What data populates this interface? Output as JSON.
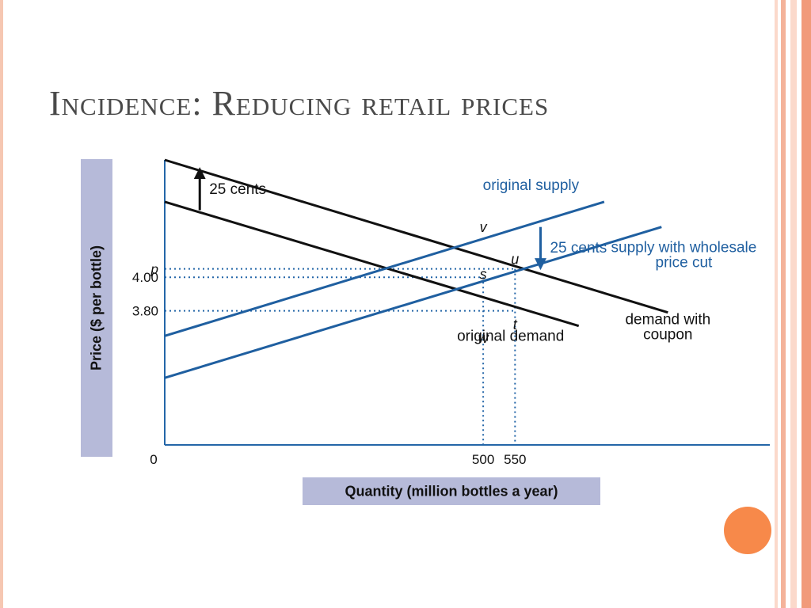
{
  "slide": {
    "title": "Incidence: Reducing retail prices",
    "colors": {
      "left_border": "#f6c7b2",
      "stripes": [
        "#fbd9cb",
        "#f4b39a",
        "#fbd9cb",
        "#f19a7a"
      ],
      "accent_circle": "#f7894a",
      "axis_label_box": "#b6bad9"
    }
  },
  "chart_data": {
    "type": "line",
    "xlabel": "Quantity (million bottles a year)",
    "ylabel": "Price ($ per bottle)",
    "x_ticks": [
      {
        "value": 0,
        "label": "0"
      },
      {
        "value": 500,
        "label": "500"
      },
      {
        "value": 550,
        "label": "550"
      }
    ],
    "y_ticks": [
      {
        "value": 4.05,
        "label": "p"
      },
      {
        "value": 4.0,
        "label": "4.00"
      },
      {
        "value": 3.8,
        "label": "3.80"
      }
    ],
    "xlim": [
      0,
      950
    ],
    "ylim": [
      3.0,
      4.7
    ],
    "colors": {
      "demand": "#111111",
      "supply": "#1f5fa0",
      "guide": "#2466a8"
    },
    "series": [
      {
        "name": "demand with coupon",
        "kind": "demand",
        "x": [
          0,
          790
        ],
        "y": [
          4.7,
          3.79
        ]
      },
      {
        "name": "original demand",
        "kind": "demand",
        "x": [
          0,
          650
        ],
        "y": [
          4.45,
          3.71
        ]
      },
      {
        "name": "original supply",
        "kind": "supply",
        "x": [
          0,
          690
        ],
        "y": [
          3.65,
          4.45
        ]
      },
      {
        "name": "supply with wholesale price cut",
        "kind": "supply",
        "x": [
          0,
          780
        ],
        "y": [
          3.4,
          4.3
        ]
      }
    ],
    "guides": [
      {
        "x": 500,
        "y": 4.0
      },
      {
        "x": 550,
        "y": 3.8
      },
      {
        "x": 550,
        "y": 4.05
      }
    ],
    "shift_arrows": [
      {
        "label": "25 cents",
        "kind": "demand",
        "x": 55,
        "from": 4.4,
        "to": 4.65
      },
      {
        "label": "25 cents",
        "kind": "supply",
        "x": 590,
        "from": 4.3,
        "to": 4.05
      }
    ],
    "point_labels": [
      {
        "label": "v",
        "x": 500,
        "y": 4.27
      },
      {
        "label": "u",
        "x": 550,
        "y": 4.08
      },
      {
        "label": "s",
        "x": 500,
        "y": 3.99
      },
      {
        "label": "t",
        "x": 550,
        "y": 3.69
      },
      {
        "label": "w",
        "x": 500,
        "y": 3.61
      }
    ],
    "curve_labels": [
      {
        "text": "original supply",
        "x": 575,
        "y": 4.52,
        "color": "supply",
        "align": "middle"
      },
      {
        "text": "supply with wholesale",
        "x": 815,
        "y": 4.15,
        "color": "supply",
        "align": "middle"
      },
      {
        "text": "price cut",
        "x": 815,
        "y": 4.06,
        "color": "supply",
        "align": "middle"
      },
      {
        "text": "demand with",
        "x": 790,
        "y": 3.72,
        "color": "demand",
        "align": "middle"
      },
      {
        "text": "coupon",
        "x": 790,
        "y": 3.63,
        "color": "demand",
        "align": "middle"
      },
      {
        "text": "original demand",
        "x": 543,
        "y": 3.62,
        "color": "demand",
        "align": "middle"
      }
    ]
  }
}
